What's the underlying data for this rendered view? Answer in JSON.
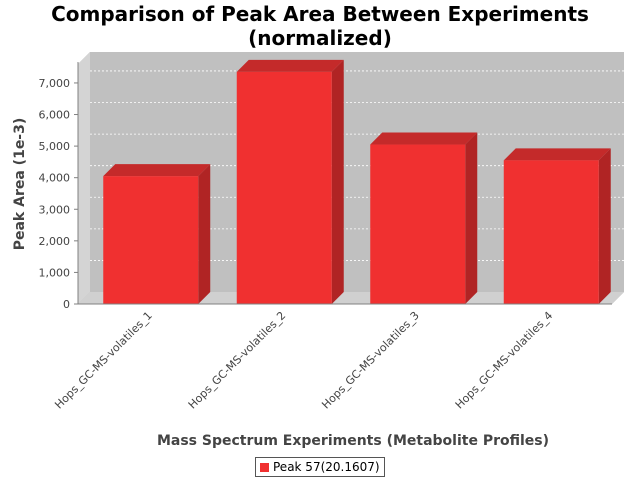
{
  "chart_data": {
    "type": "bar",
    "title": [
      "Comparison of Peak Area Between Experiments",
      "(normalized)"
    ],
    "xlabel": "Mass Spectrum Experiments (Metabolite Profiles)",
    "ylabel": "Peak Area (1e-3)",
    "categories": [
      "Hops_GC-MS-volatiles_1",
      "Hops_GC-MS-volatiles_2",
      "Hops_GC-MS-volatiles_3",
      "Hops_GC-MS-volatiles_4"
    ],
    "series": [
      {
        "name": "Peak 57(20.1607)",
        "values": [
          4050,
          7350,
          5050,
          4550
        ],
        "color": "#f03030"
      }
    ],
    "ylim": [
      0,
      7600
    ],
    "yticks": [
      0,
      1000,
      2000,
      3000,
      4000,
      5000,
      6000,
      7000
    ],
    "ytick_labels": [
      "0",
      "1,000",
      "2,000",
      "3,000",
      "4,000",
      "5,000",
      "6,000",
      "7,000"
    ],
    "grid": true,
    "legend_position": "bottom"
  }
}
